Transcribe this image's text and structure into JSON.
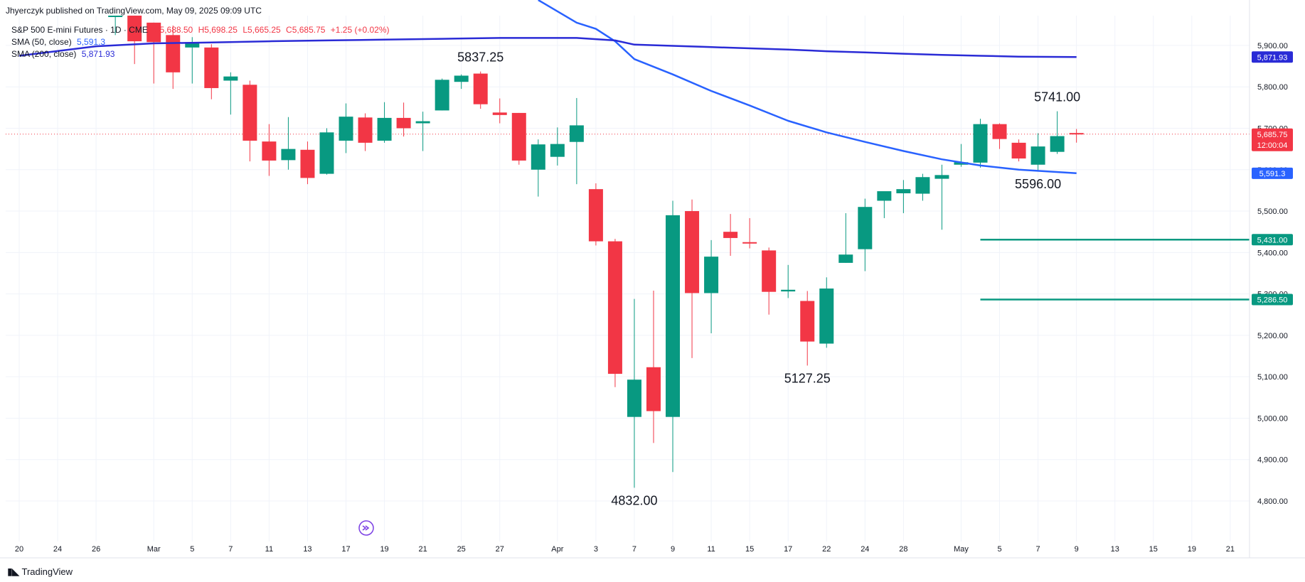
{
  "publisher": "Jhyerczyk published on TradingView.com, May 09, 2025 09:09 UTC",
  "legend": {
    "title": "S&P 500 E-mini Futures · 1D · CME",
    "ohlc": {
      "o": "O5,688.50",
      "h": "H5,698.25",
      "l": "L5,665.25",
      "c": "C5,685.75",
      "chg": "+1.25 (+0.02%)"
    },
    "sma50_label": "SMA (50, close)",
    "sma50_value": "5,591.3",
    "sma200_label": "SMA (200, close)",
    "sma200_value": "5,871.93"
  },
  "brand": "TradingView",
  "colors": {
    "up": "#089981",
    "down": "#f23645",
    "sma50": "#2962ff",
    "sma200": "#2a2bd6",
    "hline": "#089981"
  },
  "chart_data": {
    "type": "candlestick",
    "ylim": [
      4740,
      5990
    ],
    "ytick_values": [
      4800,
      4900,
      5000,
      5100,
      5200,
      5300,
      5400,
      5500,
      5600,
      5700,
      5800,
      5900
    ],
    "ytick_labels": [
      "4,800.00",
      "4,900.00",
      "5,000.00",
      "5,100.00",
      "5,200.00",
      "5,300.00",
      "5,400.00",
      "5,500.00",
      "5,600.00",
      "5,700.00",
      "5,800.00",
      "5,900.00"
    ],
    "xticks": [
      {
        "label": "20",
        "slot": 0
      },
      {
        "label": "24",
        "slot": 2
      },
      {
        "label": "26",
        "slot": 4
      },
      {
        "label": "Mar",
        "slot": 7
      },
      {
        "label": "5",
        "slot": 9
      },
      {
        "label": "7",
        "slot": 11
      },
      {
        "label": "11",
        "slot": 13
      },
      {
        "label": "13",
        "slot": 15
      },
      {
        "label": "17",
        "slot": 17
      },
      {
        "label": "19",
        "slot": 19
      },
      {
        "label": "21",
        "slot": 21
      },
      {
        "label": "25",
        "slot": 23
      },
      {
        "label": "27",
        "slot": 25
      },
      {
        "label": "Apr",
        "slot": 28
      },
      {
        "label": "3",
        "slot": 30
      },
      {
        "label": "7",
        "slot": 32
      },
      {
        "label": "9",
        "slot": 34
      },
      {
        "label": "11",
        "slot": 36
      },
      {
        "label": "15",
        "slot": 38
      },
      {
        "label": "17",
        "slot": 40
      },
      {
        "label": "22",
        "slot": 42
      },
      {
        "label": "24",
        "slot": 44
      },
      {
        "label": "28",
        "slot": 46
      },
      {
        "label": "May",
        "slot": 49
      },
      {
        "label": "5",
        "slot": 51
      },
      {
        "label": "7",
        "slot": 53
      },
      {
        "label": "9",
        "slot": 55
      },
      {
        "label": "13",
        "slot": 57
      },
      {
        "label": "15",
        "slot": 59
      },
      {
        "label": "19",
        "slot": 61
      },
      {
        "label": "21",
        "slot": 63
      }
    ],
    "candles": [
      {
        "slot": 5,
        "o": 5985,
        "h": 6000,
        "l": 5925,
        "c": 5985
      },
      {
        "slot": 6,
        "o": 5985,
        "h": 5990,
        "l": 5855,
        "c": 5910
      },
      {
        "slot": 7,
        "o": 5955,
        "h": 5955,
        "l": 5808,
        "c": 5908
      },
      {
        "slot": 8,
        "o": 5925,
        "h": 5948,
        "l": 5795,
        "c": 5835
      },
      {
        "slot": 9,
        "o": 5895,
        "h": 5920,
        "l": 5808,
        "c": 5908
      },
      {
        "slot": 10,
        "o": 5895,
        "h": 5903,
        "l": 5770,
        "c": 5797
      },
      {
        "slot": 11,
        "o": 5815,
        "h": 5835,
        "l": 5733,
        "c": 5825
      },
      {
        "slot": 12,
        "o": 5805,
        "h": 5815,
        "l": 5620,
        "c": 5670
      },
      {
        "slot": 13,
        "o": 5668,
        "h": 5710,
        "l": 5585,
        "c": 5622
      },
      {
        "slot": 14,
        "o": 5623,
        "h": 5727,
        "l": 5600,
        "c": 5650
      },
      {
        "slot": 15,
        "o": 5648,
        "h": 5668,
        "l": 5565,
        "c": 5580
      },
      {
        "slot": 16,
        "o": 5590,
        "h": 5700,
        "l": 5588,
        "c": 5690
      },
      {
        "slot": 17,
        "o": 5670,
        "h": 5760,
        "l": 5640,
        "c": 5728
      },
      {
        "slot": 18,
        "o": 5726,
        "h": 5736,
        "l": 5645,
        "c": 5665
      },
      {
        "slot": 19,
        "o": 5670,
        "h": 5763,
        "l": 5665,
        "c": 5725
      },
      {
        "slot": 20,
        "o": 5725,
        "h": 5762,
        "l": 5680,
        "c": 5700
      },
      {
        "slot": 21,
        "o": 5712,
        "h": 5740,
        "l": 5645,
        "c": 5717
      },
      {
        "slot": 22,
        "o": 5743,
        "h": 5820,
        "l": 5743,
        "c": 5817
      },
      {
        "slot": 23,
        "o": 5812,
        "h": 5830,
        "l": 5795,
        "c": 5827
      },
      {
        "slot": 24,
        "o": 5832,
        "h": 5837,
        "l": 5747,
        "c": 5758
      },
      {
        "slot": 25,
        "o": 5738,
        "h": 5772,
        "l": 5712,
        "c": 5732
      },
      {
        "slot": 26,
        "o": 5737,
        "h": 5737,
        "l": 5612,
        "c": 5622
      },
      {
        "slot": 27,
        "o": 5600,
        "h": 5673,
        "l": 5535,
        "c": 5661
      },
      {
        "slot": 28,
        "o": 5631,
        "h": 5702,
        "l": 5610,
        "c": 5662
      },
      {
        "slot": 29,
        "o": 5667,
        "h": 5773,
        "l": 5565,
        "c": 5707
      },
      {
        "slot": 30,
        "o": 5553,
        "h": 5567,
        "l": 5417,
        "c": 5427
      },
      {
        "slot": 31,
        "o": 5427,
        "h": 5433,
        "l": 5075,
        "c": 5107
      },
      {
        "slot": 32,
        "o": 5003,
        "h": 5288,
        "l": 4832,
        "c": 5093
      },
      {
        "slot": 33,
        "o": 5123,
        "h": 5308,
        "l": 4940,
        "c": 5017
      },
      {
        "slot": 34,
        "o": 5003,
        "h": 5525,
        "l": 4870,
        "c": 5490
      },
      {
        "slot": 35,
        "o": 5500,
        "h": 5528,
        "l": 5145,
        "c": 5302
      },
      {
        "slot": 36,
        "o": 5302,
        "h": 5430,
        "l": 5205,
        "c": 5390
      },
      {
        "slot": 37,
        "o": 5450,
        "h": 5493,
        "l": 5392,
        "c": 5435
      },
      {
        "slot": 38,
        "o": 5425,
        "h": 5483,
        "l": 5410,
        "c": 5423
      },
      {
        "slot": 39,
        "o": 5405,
        "h": 5412,
        "l": 5250,
        "c": 5305
      },
      {
        "slot": 40,
        "o": 5306,
        "h": 5370,
        "l": 5290,
        "c": 5310
      },
      {
        "slot": 41,
        "o": 5283,
        "h": 5307,
        "l": 5127,
        "c": 5185
      },
      {
        "slot": 42,
        "o": 5180,
        "h": 5340,
        "l": 5170,
        "c": 5313
      },
      {
        "slot": 43,
        "o": 5375,
        "h": 5495,
        "l": 5375,
        "c": 5395
      },
      {
        "slot": 44,
        "o": 5408,
        "h": 5530,
        "l": 5355,
        "c": 5510
      },
      {
        "slot": 45,
        "o": 5525,
        "h": 5545,
        "l": 5483,
        "c": 5548
      },
      {
        "slot": 46,
        "o": 5543,
        "h": 5575,
        "l": 5495,
        "c": 5553
      },
      {
        "slot": 47,
        "o": 5542,
        "h": 5590,
        "l": 5525,
        "c": 5582
      },
      {
        "slot": 48,
        "o": 5578,
        "h": 5612,
        "l": 5455,
        "c": 5587
      },
      {
        "slot": 49,
        "o": 5612,
        "h": 5662,
        "l": 5607,
        "c": 5618
      },
      {
        "slot": 50,
        "o": 5617,
        "h": 5723,
        "l": 5605,
        "c": 5710
      },
      {
        "slot": 51,
        "o": 5710,
        "h": 5712,
        "l": 5650,
        "c": 5674
      },
      {
        "slot": 52,
        "o": 5665,
        "h": 5673,
        "l": 5620,
        "c": 5627
      },
      {
        "slot": 53,
        "o": 5612,
        "h": 5688,
        "l": 5596,
        "c": 5656
      },
      {
        "slot": 54,
        "o": 5643,
        "h": 5741,
        "l": 5638,
        "c": 5681
      },
      {
        "slot": 55,
        "o": 5688.5,
        "h": 5698.25,
        "l": 5665.25,
        "c": 5685.75
      }
    ],
    "series": [
      {
        "name": "SMA (50, close)",
        "x": [
          27,
          29,
          30,
          31,
          32,
          34,
          36,
          38,
          40,
          42,
          44,
          46,
          48,
          50,
          52,
          55
        ],
        "y": [
          6020,
          5955,
          5940,
          5910,
          5867,
          5830,
          5790,
          5755,
          5718,
          5690,
          5667,
          5645,
          5625,
          5610,
          5600,
          5591.3
        ]
      },
      {
        "name": "SMA (200, close)",
        "x": [
          0,
          4,
          7,
          10,
          13,
          16,
          19,
          22,
          25,
          29,
          31,
          32,
          34,
          36,
          38,
          40,
          42,
          44,
          46,
          48,
          50,
          52,
          55
        ],
        "y": [
          5875,
          5898,
          5905,
          5907,
          5910,
          5912,
          5914,
          5916,
          5918,
          5918,
          5912,
          5902,
          5899,
          5896,
          5893,
          5890,
          5886,
          5883,
          5880,
          5877,
          5875,
          5873,
          5871.93
        ]
      }
    ],
    "hlines": [
      {
        "value": 5431,
        "slot_start": 50,
        "label": "5,431.00"
      },
      {
        "value": 5286.5,
        "slot_start": 50,
        "label": "5,286.50"
      }
    ],
    "last_price": {
      "value": 5685.75,
      "label": "5,685.75",
      "timer": "12:00:04"
    },
    "sma50_tag": {
      "value": 5591.3,
      "label": "5,591.3"
    },
    "sma200_tag": {
      "value": 5871.93,
      "label": "5,871.93"
    },
    "annotations": [
      {
        "text": "5837.25",
        "slot": 24,
        "price": 5837.25,
        "pos": "above"
      },
      {
        "text": "4832.00",
        "slot": 32,
        "price": 4832,
        "pos": "below"
      },
      {
        "text": "5127.25",
        "slot": 41,
        "price": 5127.25,
        "pos": "below"
      },
      {
        "text": "5741.00",
        "slot": 54,
        "price": 5741,
        "pos": "above"
      },
      {
        "text": "5596.00",
        "slot": 53,
        "price": 5596,
        "pos": "below"
      }
    ]
  }
}
